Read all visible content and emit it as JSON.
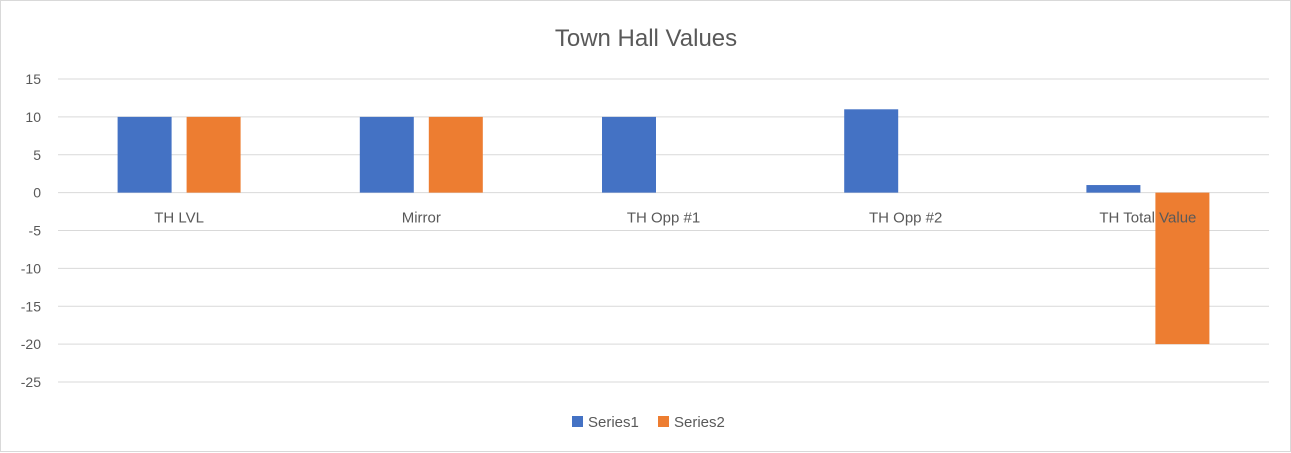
{
  "chart_data": {
    "type": "bar",
    "title": "Town Hall Values",
    "categories": [
      "TH LVL",
      "Mirror",
      "TH Opp #1",
      "TH Opp #2",
      "TH Total Value"
    ],
    "series": [
      {
        "name": "Series1",
        "values": [
          10,
          10,
          10,
          11,
          1
        ]
      },
      {
        "name": "Series2",
        "values": [
          10,
          10,
          0,
          0,
          -20
        ]
      }
    ],
    "ylim": [
      -25,
      15
    ],
    "yticks": [
      15,
      10,
      5,
      0,
      -5,
      -10,
      -15,
      -20,
      -25
    ],
    "grid": true,
    "legend_position": "bottom",
    "colors": {
      "Series1": "#4472c4",
      "Series2": "#ed7d31"
    }
  }
}
